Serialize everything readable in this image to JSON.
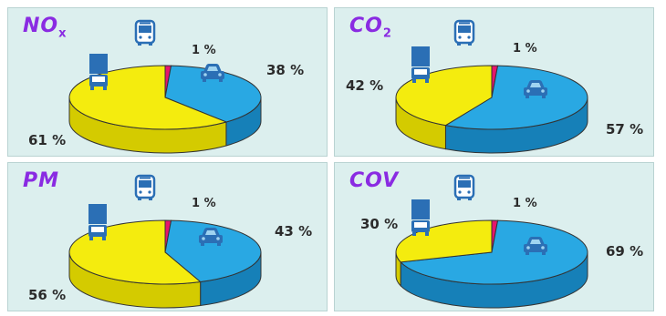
{
  "colors": {
    "car_top": "#29a8e3",
    "car_side": "#1680b8",
    "truck_top": "#f4ec0e",
    "truck_side": "#d4cb00",
    "bus_top": "#e6156b",
    "bus_side": "#b50e52",
    "edge": "#333333",
    "icon": "#2b6fb5"
  },
  "chart_data": [
    {
      "type": "pie",
      "title_main": "NO",
      "title_sub": "x",
      "categories": [
        "bus",
        "car",
        "truck"
      ],
      "values": [
        1,
        38,
        61
      ],
      "labels": [
        "1 %",
        "38 %",
        "61 %"
      ]
    },
    {
      "type": "pie",
      "title_main": "CO",
      "title_sub": "2",
      "categories": [
        "bus",
        "car",
        "truck"
      ],
      "values": [
        1,
        57,
        42
      ],
      "labels": [
        "1 %",
        "57 %",
        "42 %"
      ]
    },
    {
      "type": "pie",
      "title_main": "PM",
      "title_sub": "",
      "categories": [
        "bus",
        "car",
        "truck"
      ],
      "values": [
        1,
        43,
        56
      ],
      "labels": [
        "1 %",
        "43 %",
        "56 %"
      ]
    },
    {
      "type": "pie",
      "title_main": "COV",
      "title_sub": "",
      "categories": [
        "bus",
        "car",
        "truck"
      ],
      "values": [
        1,
        69,
        30
      ],
      "labels": [
        "1 %",
        "69 %",
        "30 %"
      ]
    }
  ]
}
